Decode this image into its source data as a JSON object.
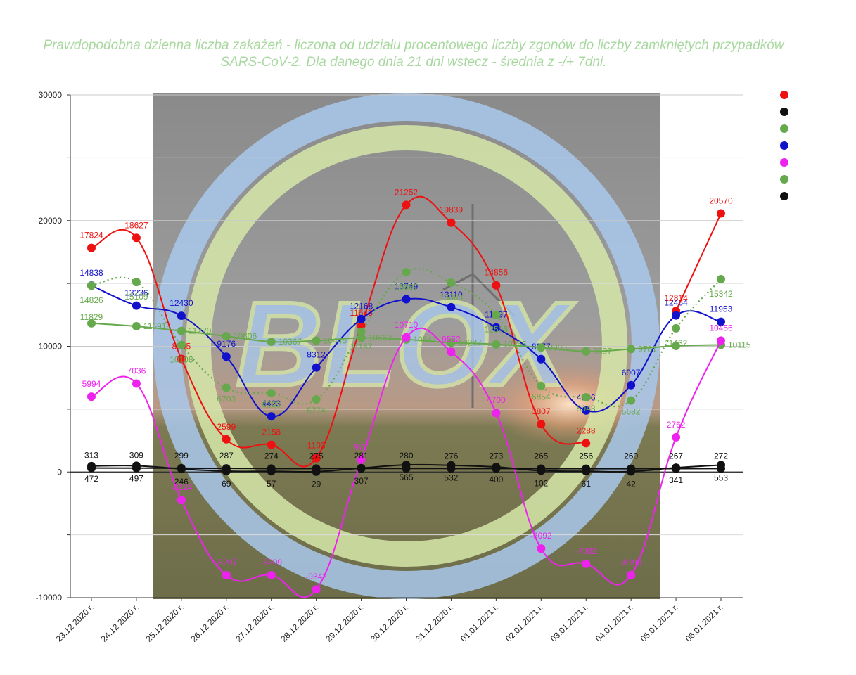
{
  "colors": {
    "red": "#ee1111",
    "black": "#111111",
    "green": "#66a84c",
    "blue": "#1111cc",
    "magenta": "#ee22ee",
    "green2": "#66a84c",
    "black2": "#111111",
    "title": "#a8d8a0"
  },
  "chart_data": {
    "type": "line",
    "title_lines": [
      "Prawdopodobna dzienna liczba zakażeń - liczona od udziału procentowego liczby zgonów do liczby zamkniętych przypadków",
      "SARS-CoV-2. Dla danego dnia 21 dni wstecz - średnia z  -/+ 7dni."
    ],
    "watermark": "BLOX",
    "categories": [
      "23.12.2020 r.",
      "24.12.2020 r.",
      "25.12.2020 r.",
      "26.12.2020 r.",
      "27.12.2020 r.",
      "28.12.2020 r.",
      "29.12.2020 r.",
      "30.12.2020 r.",
      "31.12.2020 r.",
      "01.01.2021 r.",
      "02.01.2021 r.",
      "03.01.2021 r.",
      "04.01.2021 r.",
      "05.01.2021 r.",
      "06.01.2021 r."
    ],
    "ylim": [
      -10000,
      30000
    ],
    "yticks": [
      "-10000",
      "0",
      "10000",
      "20000",
      "30000"
    ],
    "yticks_values": [
      -10000,
      0,
      10000,
      20000,
      30000
    ],
    "grid": true,
    "legend_position": "right",
    "series": [
      {
        "name": "",
        "color_key": "red",
        "style": "solid",
        "label_pos": "above",
        "values": [
          17824,
          18627,
          8995,
          2599,
          2158,
          1103,
          11646,
          21252,
          19839,
          14856,
          3807,
          2288,
          null,
          12814,
          20570
        ],
        "labels": [
          "17824",
          "18627",
          "8995",
          "2599",
          "2158",
          "1103",
          "11646",
          "21252",
          "19839",
          "14856",
          "3807",
          "2288",
          null,
          "12814",
          "20570"
        ]
      },
      {
        "name": "",
        "color_key": "blue",
        "style": "solid",
        "label_pos": "above",
        "values": [
          14838,
          13236,
          12430,
          9176,
          4423,
          8312,
          12168,
          13749,
          13110,
          11497,
          8977,
          4896,
          6907,
          12454,
          11953
        ],
        "labels": [
          "14838",
          "13236",
          "12430",
          "9176",
          "4423",
          "8312",
          "12168",
          "13749",
          "13110",
          "11497",
          "8977",
          "4896",
          "6907",
          "12454",
          "11953"
        ]
      },
      {
        "name": "",
        "color_key": "green",
        "style": "dotted",
        "label_pos": "mixed",
        "values": [
          14826,
          15109,
          10108,
          6703,
          6263,
          5774,
          11157,
          15897,
          15063,
          12506,
          6854,
          5943,
          5682,
          11432,
          15342
        ],
        "labels": [
          "14826",
          "15109",
          "10108",
          "6703",
          "6263",
          "5774",
          "11157",
          "15897",
          "15063",
          "12506",
          "6854",
          "5943",
          "5682",
          "11432",
          "15342"
        ]
      },
      {
        "name": "",
        "color_key": "green2",
        "style": "solid",
        "label_pos": "right",
        "values": [
          11829,
          11591,
          11220,
          10806,
          10367,
          10445,
          10669,
          10542,
          10287,
          10155,
          9900,
          9597,
          9781,
          10030,
          10115
        ],
        "labels": [
          "11829",
          "11591",
          "11220",
          "10806",
          "10367",
          "10445",
          "10669",
          "10542",
          "10287",
          "10155",
          "9900",
          "9597",
          "9781",
          null,
          "10115"
        ]
      },
      {
        "name": "",
        "color_key": "magenta",
        "style": "solid",
        "label_pos": "above",
        "values": [
          5994,
          7036,
          -2224,
          -8207,
          -8209,
          -9342,
          977,
          10710,
          9552,
          4700,
          -6092,
          -7302,
          -8199,
          2762,
          10456
        ],
        "labels": [
          "5994",
          "7036",
          "-2224",
          "-8207",
          "-8209",
          "-9342",
          "977",
          "10710",
          "9552",
          "4700",
          "-6092",
          "-7302",
          "-8199",
          "2762",
          "10456"
        ]
      },
      {
        "name": "",
        "color_key": "black",
        "style": "solid",
        "label_pos": "above",
        "values": [
          313,
          309,
          299,
          287,
          274,
          275,
          281,
          280,
          276,
          273,
          265,
          256,
          260,
          267,
          272
        ],
        "labels": [
          "313",
          "309",
          "299",
          "287",
          "274",
          "275",
          "281",
          "280",
          "276",
          "273",
          "265",
          "256",
          "260",
          "267",
          "272"
        ]
      },
      {
        "name": "",
        "color_key": "black2",
        "style": "solid",
        "label_pos": "below",
        "values": [
          472,
          497,
          246,
          69,
          57,
          29,
          307,
          565,
          532,
          400,
          102,
          61,
          42,
          341,
          553
        ],
        "labels": [
          "472",
          "497",
          "246",
          "69",
          "57",
          "29",
          "307",
          "565",
          "532",
          "400",
          "102",
          "61",
          "42",
          "341",
          "553"
        ]
      }
    ],
    "legend": [
      {
        "color_key": "red",
        "label": ""
      },
      {
        "color_key": "black",
        "label": ""
      },
      {
        "color_key": "green",
        "label": ""
      },
      {
        "color_key": "blue",
        "label": ""
      },
      {
        "color_key": "magenta",
        "label": ""
      },
      {
        "color_key": "green2",
        "label": ""
      },
      {
        "color_key": "black2",
        "label": ""
      }
    ]
  }
}
